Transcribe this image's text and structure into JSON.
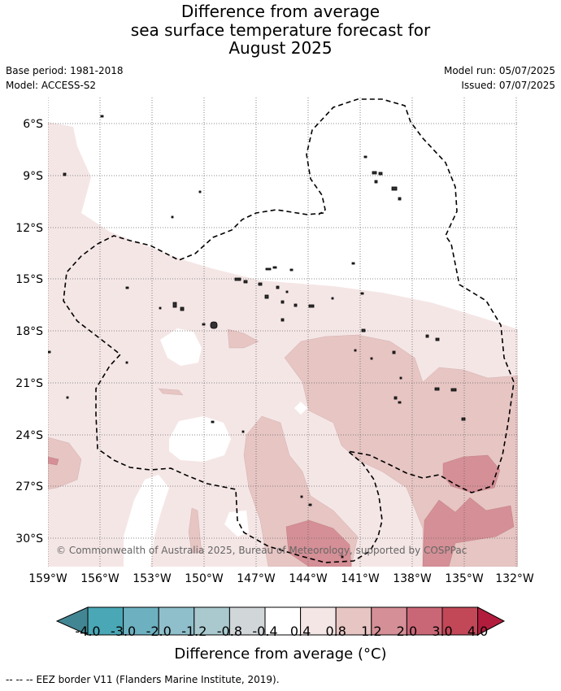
{
  "title": {
    "line1": "Difference from average",
    "line2": "sea surface temperature forecast for",
    "line3": "August 2025"
  },
  "meta": {
    "base_period": "Base period: 1981-2018",
    "model": "Model: ACCESS-S2",
    "model_run": "Model run: 05/07/2025",
    "issued": "Issued: 07/07/2025"
  },
  "map": {
    "credit": "© Commonwealth of Australia 2025, Bureau of Meteorology, supported by COSPPac",
    "x_ticks": [
      "159°W",
      "156°W",
      "153°W",
      "150°W",
      "147°W",
      "144°W",
      "141°W",
      "138°W",
      "135°W",
      "132°W"
    ],
    "y_ticks": [
      "6°S",
      "9°S",
      "12°S",
      "15°S",
      "18°S",
      "21°S",
      "24°S",
      "27°S",
      "30°S"
    ]
  },
  "colorbar": {
    "labels": [
      "-4.0",
      "-3.0",
      "-2.0",
      "-1.2",
      "-0.8",
      "-0.4",
      "0.4",
      "0.8",
      "1.2",
      "2.0",
      "3.0",
      "4.0"
    ],
    "colors": [
      "#438693",
      "#4aa7b6",
      "#6db1c0",
      "#8fbfca",
      "#a9c9ce",
      "#d1d6d9",
      "#ffffff",
      "#f5e6e6",
      "#e6c5c3",
      "#d58f96",
      "#ca6777",
      "#c24858",
      "#b21d3e"
    ],
    "title": "Difference from average (°C)"
  },
  "footer": {
    "legend_symbol": "--  --  --",
    "legend_text": "EEZ border V11 (Flanders Marine Institute, 2019)."
  }
}
